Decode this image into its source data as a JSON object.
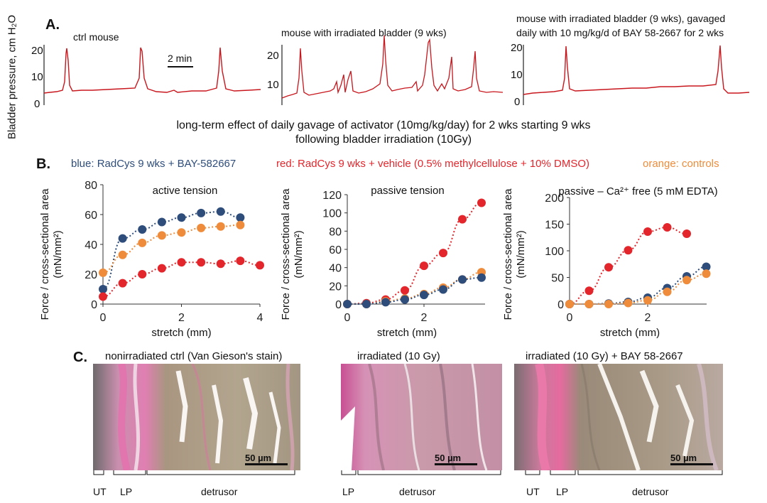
{
  "panelA": {
    "letter": "A.",
    "ylabel": "Bladder pressure, cm H₂O",
    "traces": [
      {
        "title": "ctrl mouse",
        "yticks": [
          "20",
          "10",
          "0"
        ]
      },
      {
        "title": "mouse with irradiated bladder (9 wks)",
        "yticks": [
          "20",
          "10"
        ]
      },
      {
        "title_line1": "mouse with irradiated bladder (9 wks), gavaged",
        "title_line2": "daily with  10 mg/kg/d of BAY  58-2667 for 2 wks",
        "yticks": [
          "20",
          "10",
          "0"
        ]
      }
    ],
    "scale_label": "2 min",
    "caption_line1": "long-term  effect of daily gavage of activator (10mg/kg/day) for 2 wks starting 9 wks",
    "caption_line2": "following bladder irradiation (10Gy)",
    "trace_color": "#c8161d"
  },
  "panelB": {
    "letter": "B.",
    "legend_blue": "blue:  RadCys 9 wks + BAY-582667",
    "legend_red": "red:  RadCys 9 wks + vehicle  (0.5% methylcellulose + 10% DMSO)",
    "legend_orange": "orange:  controls",
    "ylabel_line1": "Force / cross-sectional area",
    "ylabel_line2": "(mN/mm²)",
    "xlabel": "stretch (mm)",
    "colors": {
      "blue": "#2e4d7b",
      "red": "#e3262c",
      "orange": "#ee8c3b"
    }
  },
  "chart_data": [
    {
      "type": "scatter",
      "title": "active tension",
      "xlabel": "stretch (mm)",
      "ylabel": "Force / cross-sectional area (mN/mm²)",
      "xlim": [
        0,
        4
      ],
      "ylim": [
        0,
        80
      ],
      "xticks": [
        0,
        2,
        4
      ],
      "yticks": [
        0,
        20,
        40,
        60,
        80
      ],
      "series": [
        {
          "name": "blue",
          "x": [
            0,
            0.5,
            1,
            1.5,
            2,
            2.5,
            3,
            3.5
          ],
          "values": [
            10,
            44,
            50,
            55,
            58,
            61,
            62,
            58
          ]
        },
        {
          "name": "orange",
          "x": [
            0,
            0.5,
            1,
            1.5,
            2,
            2.5,
            3,
            3.5
          ],
          "values": [
            21,
            33,
            41,
            46,
            48,
            51,
            52,
            53
          ]
        },
        {
          "name": "red",
          "x": [
            0,
            0.5,
            1,
            1.5,
            2,
            2.5,
            3,
            3.5,
            4
          ],
          "values": [
            5,
            14,
            20,
            24,
            28,
            28,
            27,
            29,
            26
          ]
        }
      ]
    },
    {
      "type": "scatter",
      "title": "passive tension",
      "xlabel": "stretch (mm)",
      "ylabel": "Force / cross-sectional area (mN/mm²)",
      "xlim": [
        0,
        3.5
      ],
      "ylim": [
        0,
        120
      ],
      "xticks": [
        0,
        2
      ],
      "yticks": [
        0,
        20,
        40,
        60,
        80,
        100,
        120
      ],
      "series": [
        {
          "name": "red",
          "x": [
            0,
            0.5,
            1,
            1.5,
            2,
            2.5,
            3,
            3.5
          ],
          "values": [
            0,
            1,
            5,
            15,
            42,
            56,
            93,
            111
          ]
        },
        {
          "name": "orange",
          "x": [
            0,
            0.5,
            1,
            1.5,
            2,
            2.5,
            3,
            3.5
          ],
          "values": [
            0,
            0,
            3,
            6,
            11,
            18,
            27,
            35
          ]
        },
        {
          "name": "blue",
          "x": [
            0,
            0.5,
            1,
            1.5,
            2,
            2.5,
            3,
            3.5
          ],
          "values": [
            0,
            0,
            2,
            5,
            10,
            16,
            27,
            29
          ]
        }
      ]
    },
    {
      "type": "scatter",
      "title": "passive – Ca²⁺ free (5 mM EDTA)",
      "xlabel": "stretch (mm)",
      "ylabel": "Force / cross-sectional area (mN/mm²)",
      "xlim": [
        0,
        3.5
      ],
      "ylim": [
        0,
        200
      ],
      "xticks": [
        0,
        2
      ],
      "yticks": [
        0,
        50,
        100,
        150,
        200
      ],
      "series": [
        {
          "name": "red",
          "x": [
            0,
            0.5,
            1,
            1.5,
            2,
            2.5,
            3
          ],
          "values": [
            0,
            25,
            69,
            101,
            136,
            144,
            132
          ]
        },
        {
          "name": "blue",
          "x": [
            0,
            0.5,
            1,
            1.5,
            2,
            2.5,
            3,
            3.5
          ],
          "values": [
            0,
            0,
            1,
            4,
            12,
            30,
            52,
            70
          ]
        },
        {
          "name": "orange",
          "x": [
            0,
            0.5,
            1,
            1.5,
            2,
            2.5,
            3,
            3.5
          ],
          "values": [
            0,
            0,
            0,
            2,
            7,
            23,
            45,
            57
          ]
        }
      ]
    }
  ],
  "panelC": {
    "letter": "C.",
    "images": [
      {
        "title": "nonirradiated ctrl (Van Gieson's stain)",
        "scale": "50 µm",
        "regions": [
          "UT",
          "LP",
          "detrusor"
        ]
      },
      {
        "title": "irradiated (10 Gy)",
        "scale": "50 µm",
        "regions": [
          "LP",
          "detrusor"
        ]
      },
      {
        "title": "irradiated (10 Gy) + BAY  58-2667",
        "scale": "50 µm",
        "regions": [
          "UT",
          "LP",
          "detrusor"
        ]
      }
    ]
  }
}
